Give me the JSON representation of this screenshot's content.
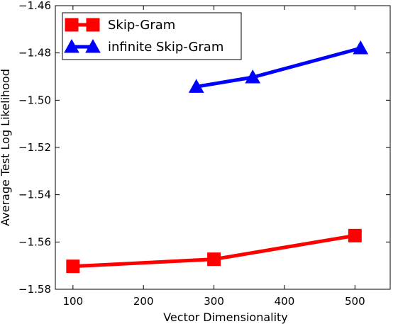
{
  "chart_data": {
    "type": "line",
    "title": "",
    "xlabel": "Vector Dimensionality",
    "ylabel": "Average Test Log Likelihood",
    "xlim": [
      75,
      550
    ],
    "ylim": [
      -1.58,
      -1.46
    ],
    "xticks": [
      100,
      200,
      300,
      400,
      500
    ],
    "yticks": [
      -1.58,
      -1.56,
      -1.54,
      -1.52,
      -1.5,
      -1.48,
      -1.46
    ],
    "xtick_labels": [
      "100",
      "200",
      "300",
      "400",
      "500"
    ],
    "ytick_labels": [
      "−1.58",
      "−1.56",
      "−1.54",
      "−1.52",
      "−1.50",
      "−1.48",
      "−1.46"
    ],
    "grid": false,
    "legend_position": "top-left",
    "series": [
      {
        "name": "Skip-Gram",
        "color": "#ff0000",
        "marker": "square",
        "x": [
          100,
          300,
          500
        ],
        "y": [
          -1.5703,
          -1.5673,
          -1.5573
        ]
      },
      {
        "name": "infinite Skip-Gram",
        "color": "#0000ff",
        "marker": "triangle-up",
        "x": [
          275,
          355,
          508
        ],
        "y": [
          -1.4943,
          -1.4903,
          -1.478
        ]
      }
    ]
  }
}
